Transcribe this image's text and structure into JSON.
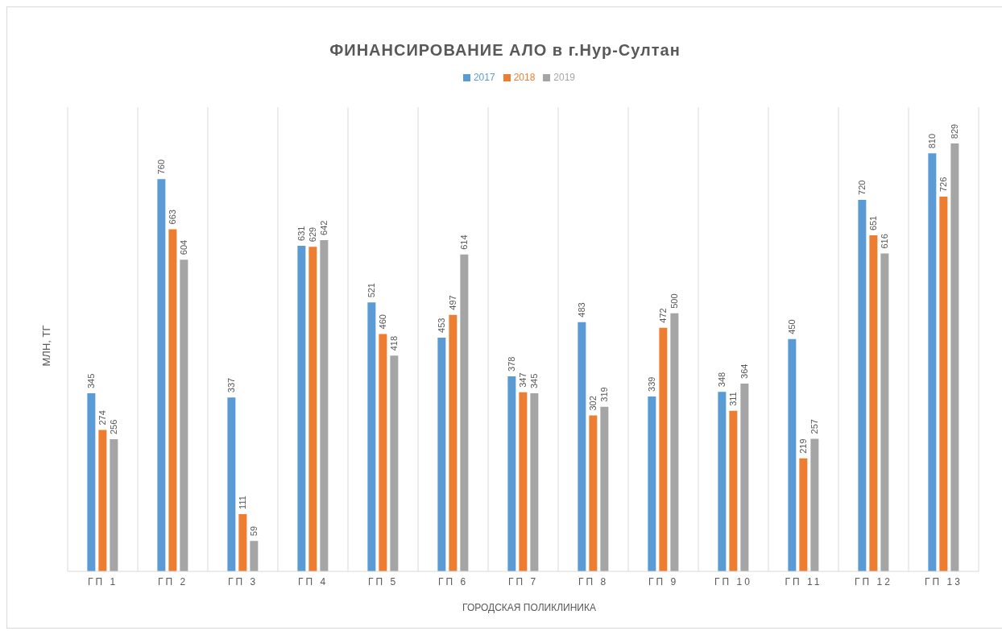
{
  "chart_data": {
    "type": "bar",
    "title": "ФИНАНСИРОВАНИЕ АЛО в г.Нур-Султан",
    "xlabel": "ГОРОДСКАЯ ПОЛИКЛИНИКА",
    "ylabel": "МЛН, ТГ",
    "categories": [
      "ГП 1",
      "ГП 2",
      "ГП 3",
      "ГП 4",
      "ГП 5",
      "ГП 6",
      "ГП 7",
      "ГП 8",
      "ГП 9",
      "ГП 10",
      "ГП 11",
      "ГП 12",
      "ГП 13"
    ],
    "series": [
      {
        "name": "2017",
        "color": "#5b9bd5",
        "values": [
          345,
          760,
          337,
          631,
          521,
          453,
          378,
          483,
          339,
          348,
          450,
          720,
          810
        ]
      },
      {
        "name": "2018",
        "color": "#ed7d31",
        "values": [
          274,
          663,
          111,
          629,
          460,
          497,
          347,
          302,
          472,
          311,
          219,
          651,
          726
        ]
      },
      {
        "name": "2019",
        "color": "#a5a5a5",
        "values": [
          256,
          604,
          59,
          642,
          418,
          614,
          345,
          319,
          500,
          364,
          257,
          616,
          829
        ]
      }
    ],
    "data_labels": true,
    "grid": "x",
    "legend": "top"
  }
}
